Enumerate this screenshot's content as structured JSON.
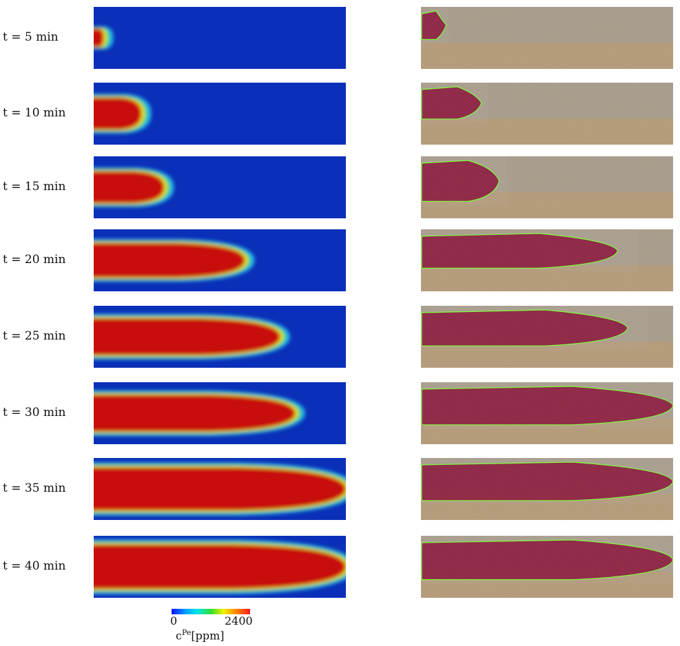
{
  "rows": [
    {
      "label": "t = 5 min",
      "sim_front": 0.04,
      "sim_width": 0.3,
      "photo_front": 0.1,
      "photo_width": 0.46
    },
    {
      "label": "t = 10 min",
      "sim_front": 0.19,
      "sim_width": 0.52,
      "photo_front": 0.24,
      "photo_width": 0.52
    },
    {
      "label": "t = 15 min",
      "sim_front": 0.28,
      "sim_width": 0.52,
      "photo_front": 0.31,
      "photo_width": 0.66
    },
    {
      "label": "t = 20 min",
      "sim_front": 0.6,
      "sim_width": 0.56,
      "photo_front": 0.78,
      "photo_width": 0.56
    },
    {
      "label": "t = 25 min",
      "sim_front": 0.74,
      "sim_width": 0.6,
      "photo_front": 0.82,
      "photo_width": 0.58
    },
    {
      "label": "t = 30 min",
      "sim_front": 0.8,
      "sim_width": 0.6,
      "photo_front": 1.0,
      "photo_width": 0.62
    },
    {
      "label": "t = 35 min",
      "sim_front": 1.0,
      "sim_width": 0.7,
      "photo_front": 1.0,
      "photo_width": 0.62
    },
    {
      "label": "t = 40 min",
      "sim_front": 1.0,
      "sim_width": 0.72,
      "photo_front": 1.0,
      "photo_width": 0.64
    }
  ],
  "colorbar": {
    "min_label": "0",
    "max_label": "2400",
    "quantity": "c",
    "superscript": "Pe",
    "unit": "[ppm]"
  },
  "colors": {
    "field_background": "#0a2fb8",
    "plume_core": "#c8100d",
    "photo_background": "#b49a78",
    "photo_upper": "#a89c8a",
    "photo_plume": "#8a1438",
    "outline": "#7fff3a"
  }
}
